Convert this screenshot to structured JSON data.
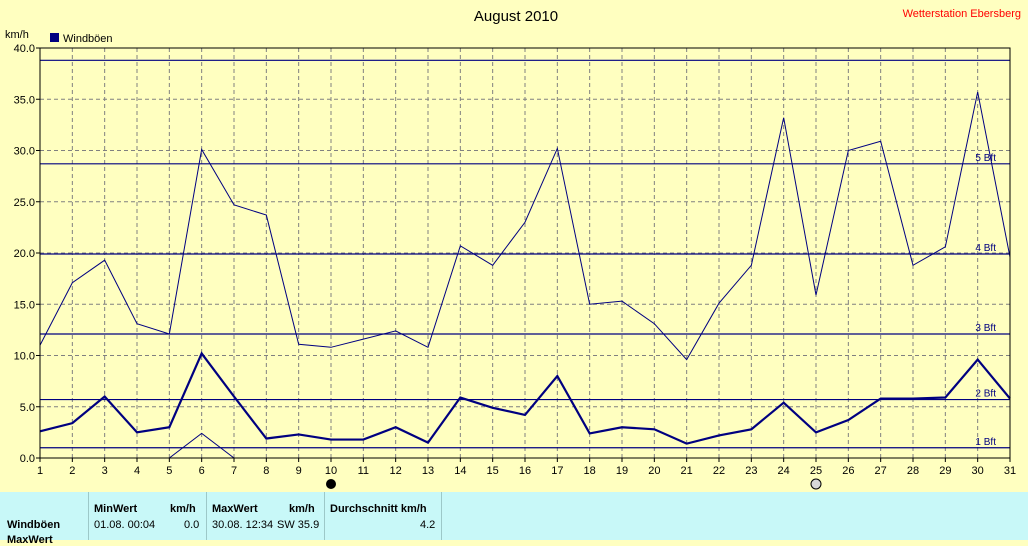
{
  "header": {
    "title": "August 2010",
    "station": "Wetterstation Ebersberg",
    "unit_label": "km/h",
    "legend_label": "Windböen",
    "legend_color": "#000080"
  },
  "chart_data": {
    "type": "line",
    "title": "August 2010",
    "ylabel": "km/h",
    "xlabel": "",
    "ylim": [
      0,
      40
    ],
    "yticks": [
      "0.0",
      "5.0",
      "10.0",
      "15.0",
      "20.0",
      "25.0",
      "30.0",
      "35.0",
      "40.0"
    ],
    "x": [
      1,
      2,
      3,
      4,
      5,
      6,
      7,
      8,
      9,
      10,
      11,
      12,
      13,
      14,
      15,
      16,
      17,
      18,
      19,
      20,
      21,
      22,
      23,
      24,
      25,
      26,
      27,
      28,
      29,
      30,
      31
    ],
    "series": [
      {
        "name": "Windböen",
        "color": "#000080",
        "values": [
          11.0,
          17.1,
          19.3,
          13.1,
          12.1,
          30.1,
          24.7,
          23.7,
          11.1,
          10.8,
          11.6,
          12.4,
          10.8,
          20.7,
          18.8,
          23.0,
          30.2,
          15.0,
          15.3,
          13.1,
          9.6,
          15.1,
          18.8,
          33.2,
          15.9,
          30.0,
          30.9,
          18.8,
          20.6,
          35.7,
          19.6
        ]
      },
      {
        "color": "#000080",
        "values": [
          2.6,
          3.4,
          6.0,
          2.5,
          3.0,
          10.2,
          6.0,
          1.9,
          2.3,
          1.8,
          1.8,
          3.0,
          1.5,
          5.9,
          4.9,
          4.2,
          8.0,
          2.4,
          3.0,
          2.8,
          1.4,
          2.2,
          2.8,
          5.4,
          2.5,
          3.7,
          5.8,
          5.8,
          5.9,
          9.6,
          5.8
        ]
      },
      {
        "color": "#000080",
        "x": [
          5,
          6,
          7
        ],
        "values": [
          0.0,
          2.4,
          0.0
        ]
      }
    ],
    "reference_lines": [
      {
        "label": "1 Bft",
        "value": 1.0
      },
      {
        "label": "2 Bft",
        "value": 5.7
      },
      {
        "label": "3 Bft",
        "value": 12.1
      },
      {
        "label": "4 Bft",
        "value": 19.9
      },
      {
        "label": "5 Bft",
        "value": 28.7
      },
      {
        "label": "",
        "value": 38.8
      }
    ],
    "moon_markers": [
      {
        "day": 10,
        "phase": "new"
      },
      {
        "day": 25,
        "phase": "full"
      }
    ],
    "grid": true,
    "legend_position": "top-left"
  },
  "stats": {
    "headers": {
      "min": "MinWert",
      "min_unit": "km/h",
      "max": "MaxWert",
      "max_unit": "km/h",
      "avg": "Durchschnitt km/h"
    },
    "rows": [
      {
        "label": "Windböen",
        "min_date": "01.08.  00:04",
        "min_value": "0.0",
        "max_date": "30.08.  12:34",
        "max_dir_value": "SW 35.9",
        "avg": "4.2"
      },
      {
        "label": "MaxWert"
      }
    ]
  }
}
